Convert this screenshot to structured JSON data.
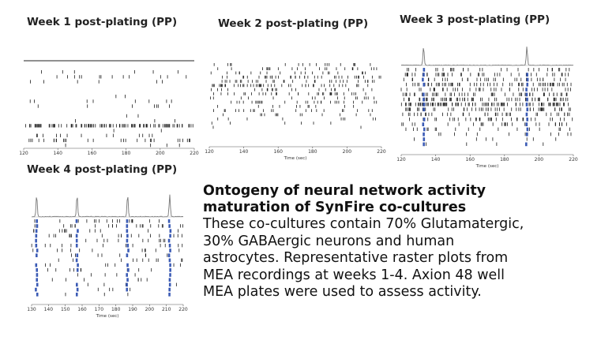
{
  "description": {
    "title_line1": "Ontogeny of neural network activity",
    "title_line2": "maturation of SynFire co-cultures",
    "body_lines": [
      "These co-cultures contain 70% Glutamatergic,",
      "30% GABAergic neurons and human",
      "astrocytes. Representative raster plots from",
      "MEA recordings at weeks 1-4. Axion 48 well",
      "MEA plates were used to assess activity."
    ]
  },
  "chart_data": [
    {
      "type": "raster",
      "title": "Week 1 post-plating (PP)",
      "xlabel": "",
      "xticks": [
        120,
        140,
        160,
        180,
        200,
        220
      ],
      "xlim": [
        120,
        220
      ],
      "channels": 16,
      "network_bursts": [],
      "has_spike_histogram": false,
      "activity": "sparse"
    },
    {
      "type": "raster",
      "title": "Week 2 post-plating (PP)",
      "xlabel": "Time (sec)",
      "xticks": [
        120,
        140,
        160,
        180,
        200,
        220
      ],
      "xlim": [
        120,
        220
      ],
      "channels": 16,
      "network_bursts": [],
      "has_spike_histogram": false,
      "activity": "moderate"
    },
    {
      "type": "raster",
      "title": "Week 3 post-plating (PP)",
      "xlabel": "Time (sec)",
      "xticks": [
        120,
        140,
        160,
        180,
        200,
        220
      ],
      "xlim": [
        120,
        220
      ],
      "channels": 16,
      "network_bursts": [
        133,
        193
      ],
      "has_spike_histogram": true,
      "activity": "high"
    },
    {
      "type": "raster",
      "title": "Week 4 post-plating (PP)",
      "xlabel": "Time (sec)",
      "xticks": [
        130,
        140,
        150,
        160,
        170,
        180,
        190,
        200,
        210,
        220
      ],
      "xlim": [
        130,
        220
      ],
      "channels": 16,
      "network_bursts": [
        133,
        157,
        187,
        212
      ],
      "has_spike_histogram": true,
      "activity": "synchronized"
    }
  ],
  "colors": {
    "spike": "#1a1a1a",
    "burst": "#3b5bb5",
    "histogram": "#777777"
  }
}
